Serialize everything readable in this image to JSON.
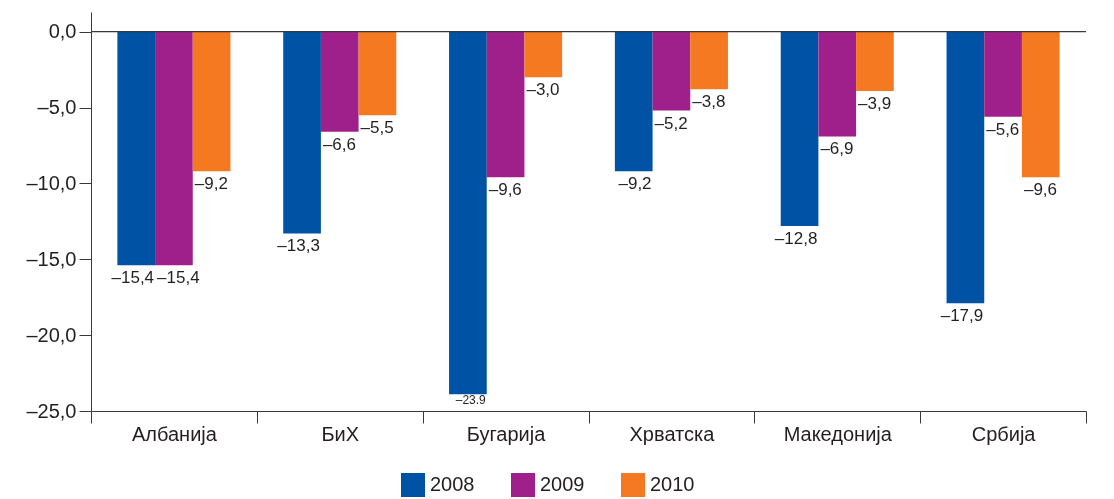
{
  "chart_data": {
    "type": "bar",
    "categories": [
      "Албанија",
      "БиХ",
      "Бугарија",
      "Хрватска",
      "Македонија",
      "Србија"
    ],
    "series": [
      {
        "name": "2008",
        "color": "#0052a4",
        "values": [
          -15.4,
          -13.3,
          -23.9,
          -9.2,
          -12.8,
          -17.9
        ],
        "value_labels": [
          "–15,4",
          "–13,3",
          "–23.9",
          "–9,2",
          "–12,8",
          "–17,9"
        ]
      },
      {
        "name": "2009",
        "color": "#a0208b",
        "values": [
          -15.4,
          -6.6,
          -9.6,
          -5.2,
          -6.9,
          -5.6
        ],
        "value_labels": [
          "–15,4",
          "–6,6",
          "–9,6",
          "–5,2",
          "–6,9",
          "–5,6"
        ]
      },
      {
        "name": "2010",
        "color": "#f47920",
        "values": [
          -9.2,
          -5.5,
          -3.0,
          -3.8,
          -3.9,
          -9.6
        ],
        "value_labels": [
          "–9,2",
          "–5,5",
          "–3,0",
          "–3,8",
          "–3,9",
          "–9,6"
        ]
      }
    ],
    "ylim": [
      -25,
      1.3
    ],
    "yticks": [
      {
        "value": 0,
        "label": "0,0"
      },
      {
        "value": -5,
        "label": "–5,0"
      },
      {
        "value": -10,
        "label": "–10,0"
      },
      {
        "value": -15,
        "label": "–15,0"
      },
      {
        "value": -20,
        "label": "–20,0"
      },
      {
        "value": -25,
        "label": "–25,0"
      }
    ],
    "ref_lines": [
      {
        "axis": "y",
        "value": 0
      }
    ],
    "legend": "bottom"
  }
}
